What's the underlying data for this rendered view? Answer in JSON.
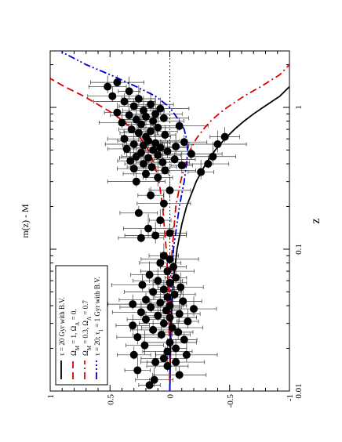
{
  "chart_data": {
    "type": "scatter",
    "rotation": "page rotated 90 degrees counter-clockwise",
    "xlabel": "z",
    "ylabel": "m(z) - M",
    "xscale": "log",
    "xlim": [
      0.01,
      2.5
    ],
    "ylim": [
      -1,
      1
    ],
    "x_tick_labels": [
      {
        "value": 0.01,
        "label": "0.01"
      },
      {
        "value": 0.1,
        "label": "0.1"
      },
      {
        "value": 1,
        "label": "1"
      }
    ],
    "y_tick_labels": [
      {
        "value": 1,
        "label": "1"
      },
      {
        "value": 0.5,
        "label": "0.5"
      },
      {
        "value": 0,
        "label": "0"
      },
      {
        "value": -0.5,
        "label": "-0.5"
      },
      {
        "value": -1,
        "label": "-1"
      }
    ],
    "legend_position": "top-left",
    "series": [
      {
        "label_main": "τ = 20 Gyr with B.V.",
        "style": "solid",
        "color": "#000000",
        "points": [
          [
            0.01,
            0
          ],
          [
            0.03,
            -0.01
          ],
          [
            0.06,
            -0.03
          ],
          [
            0.1,
            -0.06
          ],
          [
            0.15,
            -0.1
          ],
          [
            0.2,
            -0.14
          ],
          [
            0.3,
            -0.22
          ],
          [
            0.4,
            -0.3
          ],
          [
            0.5,
            -0.38
          ],
          [
            0.6,
            -0.46
          ],
          [
            0.7,
            -0.54
          ],
          [
            0.8,
            -0.62
          ],
          [
            0.9,
            -0.7
          ],
          [
            1.0,
            -0.78
          ],
          [
            1.2,
            -0.92
          ],
          [
            1.4,
            -1.0
          ]
        ]
      },
      {
        "label_main": "Ω",
        "sub1": "M",
        "mid": " = 1,  Ω",
        "sub2": "Λ",
        "tail": " = 0.",
        "style": "dashed",
        "color": "#dd0000",
        "points": [
          [
            0.01,
            0
          ],
          [
            0.05,
            0.01
          ],
          [
            0.1,
            0.03
          ],
          [
            0.2,
            0.06
          ],
          [
            0.3,
            0.09
          ],
          [
            0.4,
            0.13
          ],
          [
            0.5,
            0.18
          ],
          [
            0.6,
            0.24
          ],
          [
            0.7,
            0.31
          ],
          [
            0.8,
            0.39
          ],
          [
            0.9,
            0.47
          ],
          [
            1.0,
            0.56
          ],
          [
            1.2,
            0.72
          ],
          [
            1.4,
            0.88
          ],
          [
            1.6,
            1.0
          ]
        ]
      },
      {
        "label_main": "Ω",
        "sub1": "M",
        "mid": " = 0.3,  Ω",
        "sub2": "Λ",
        "tail": " = 0.7",
        "style": "dashdot",
        "color": "#dd0000",
        "points": [
          [
            0.01,
            0
          ],
          [
            0.05,
            0.0
          ],
          [
            0.1,
            -0.02
          ],
          [
            0.2,
            -0.05
          ],
          [
            0.3,
            -0.09
          ],
          [
            0.4,
            -0.13
          ],
          [
            0.5,
            -0.17
          ],
          [
            0.6,
            -0.22
          ],
          [
            0.7,
            -0.28
          ],
          [
            0.8,
            -0.34
          ],
          [
            0.9,
            -0.41
          ],
          [
            1.0,
            -0.48
          ],
          [
            1.2,
            -0.62
          ],
          [
            1.4,
            -0.76
          ],
          [
            1.7,
            -0.92
          ],
          [
            2.0,
            -1.0
          ]
        ]
      },
      {
        "label_main": "τ = 20; τ",
        "sub1": "1",
        "mid": " = 1 Gyr with B.V.",
        "sub2": "",
        "tail": "",
        "style": "dashdotdot",
        "color": "#0000cc",
        "points": [
          [
            0.01,
            0
          ],
          [
            0.05,
            -0.01
          ],
          [
            0.1,
            -0.03
          ],
          [
            0.2,
            -0.08
          ],
          [
            0.3,
            -0.12
          ],
          [
            0.4,
            -0.14
          ],
          [
            0.5,
            -0.15
          ],
          [
            0.6,
            -0.14
          ],
          [
            0.7,
            -0.12
          ],
          [
            0.8,
            -0.08
          ],
          [
            1.0,
            0.0
          ],
          [
            1.2,
            0.12
          ],
          [
            1.4,
            0.28
          ],
          [
            1.7,
            0.5
          ],
          [
            2.0,
            0.7
          ],
          [
            2.5,
            0.92
          ]
        ]
      }
    ],
    "observations": [
      [
        0.011,
        0.17
      ],
      [
        0.012,
        0.13
      ],
      [
        0.013,
        -0.08
      ],
      [
        0.014,
        0.27
      ],
      [
        0.015,
        0.02
      ],
      [
        0.016,
        -0.05
      ],
      [
        0.016,
        0.12
      ],
      [
        0.017,
        0.05
      ],
      [
        0.018,
        -0.14
      ],
      [
        0.018,
        0.3
      ],
      [
        0.019,
        0.02
      ],
      [
        0.02,
        -0.05
      ],
      [
        0.021,
        0.21
      ],
      [
        0.022,
        0.0
      ],
      [
        0.023,
        -0.12
      ],
      [
        0.024,
        0.27
      ],
      [
        0.025,
        0.07
      ],
      [
        0.026,
        -0.07
      ],
      [
        0.027,
        0.14
      ],
      [
        0.028,
        -0.02
      ],
      [
        0.029,
        0.31
      ],
      [
        0.03,
        0.05
      ],
      [
        0.031,
        -0.15
      ],
      [
        0.032,
        0.2
      ],
      [
        0.033,
        0.0
      ],
      [
        0.034,
        0.1
      ],
      [
        0.035,
        -0.08
      ],
      [
        0.036,
        0.24
      ],
      [
        0.037,
        0.03
      ],
      [
        0.038,
        -0.2
      ],
      [
        0.039,
        0.16
      ],
      [
        0.04,
        0.0
      ],
      [
        0.041,
        0.31
      ],
      [
        0.042,
        0.08
      ],
      [
        0.043,
        -0.11
      ],
      [
        0.044,
        0.2
      ],
      [
        0.046,
        0.02
      ],
      [
        0.048,
        -0.04
      ],
      [
        0.05,
        0.14
      ],
      [
        0.052,
        0.05
      ],
      [
        0.054,
        -0.09
      ],
      [
        0.056,
        0.23
      ],
      [
        0.058,
        0.0
      ],
      [
        0.06,
        0.1
      ],
      [
        0.063,
        -0.05
      ],
      [
        0.066,
        0.17
      ],
      [
        0.07,
        0.02
      ],
      [
        0.075,
        -0.03
      ],
      [
        0.08,
        0.08
      ],
      [
        0.085,
        0.0
      ],
      [
        0.09,
        0.05
      ],
      [
        0.12,
        0.24
      ],
      [
        0.125,
        0.12
      ],
      [
        0.13,
        0.0
      ],
      [
        0.14,
        0.18
      ],
      [
        0.16,
        0.08
      ],
      [
        0.18,
        0.26
      ],
      [
        0.21,
        0.05
      ],
      [
        0.24,
        0.16
      ],
      [
        0.26,
        0.0
      ],
      [
        0.3,
        0.28
      ],
      [
        0.32,
        0.1
      ],
      [
        0.34,
        0.2
      ],
      [
        0.36,
        0.04
      ],
      [
        0.37,
        0.3
      ],
      [
        0.38,
        0.15
      ],
      [
        0.39,
        -0.1
      ],
      [
        0.4,
        0.22
      ],
      [
        0.41,
        0.06
      ],
      [
        0.42,
        0.33
      ],
      [
        0.43,
        -0.04
      ],
      [
        0.44,
        0.18
      ],
      [
        0.45,
        0.28
      ],
      [
        0.46,
        0.1
      ],
      [
        0.47,
        -0.18
      ],
      [
        0.48,
        0.24
      ],
      [
        0.49,
        0.02
      ],
      [
        0.5,
        0.14
      ],
      [
        0.51,
        0.36
      ],
      [
        0.52,
        0.08
      ],
      [
        0.53,
        -0.05
      ],
      [
        0.54,
        0.22
      ],
      [
        0.55,
        0.3
      ],
      [
        0.56,
        0.12
      ],
      [
        0.57,
        -0.12
      ],
      [
        0.58,
        0.18
      ],
      [
        0.6,
        0.38
      ],
      [
        0.62,
        0.2
      ],
      [
        0.64,
        0.04
      ],
      [
        0.66,
        0.26
      ],
      [
        0.68,
        0.16
      ],
      [
        0.7,
        0.32
      ],
      [
        0.72,
        0.1
      ],
      [
        0.74,
        -0.08
      ],
      [
        0.76,
        0.24
      ],
      [
        0.78,
        0.4
      ],
      [
        0.8,
        0.14
      ],
      [
        0.82,
        0.28
      ],
      [
        0.84,
        0.05
      ],
      [
        0.86,
        0.2
      ],
      [
        0.88,
        0.34
      ],
      [
        0.9,
        0.12
      ],
      [
        0.92,
        0.44
      ],
      [
        0.95,
        0.22
      ],
      [
        0.98,
        0.08
      ],
      [
        1.02,
        0.3
      ],
      [
        1.05,
        0.16
      ],
      [
        1.1,
        0.38
      ],
      [
        1.15,
        0.26
      ],
      [
        1.2,
        0.48
      ],
      [
        1.3,
        0.34
      ],
      [
        1.4,
        0.52
      ],
      [
        1.5,
        0.44
      ],
      [
        0.35,
        -0.26
      ],
      [
        0.4,
        -0.32
      ],
      [
        0.55,
        -0.4
      ],
      [
        0.62,
        -0.46
      ],
      [
        0.45,
        -0.36
      ]
    ]
  }
}
